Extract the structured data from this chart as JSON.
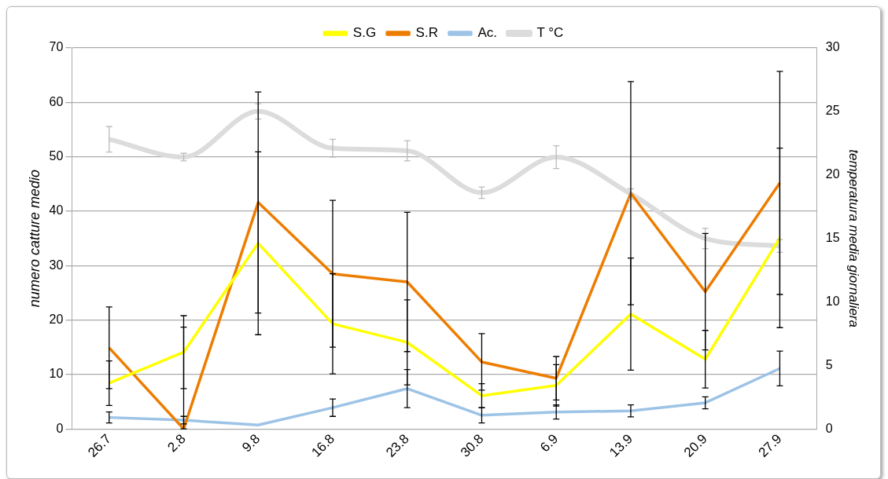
{
  "chart_data": {
    "type": "line",
    "ylabel": "numero catture medio",
    "y2label": "temperatura media giornaliera",
    "categories": [
      "26.7",
      "2.8",
      "9.8",
      "16.8",
      "23.8",
      "30.8",
      "6.9",
      "13.9",
      "20.9",
      "27.9"
    ],
    "series": [
      {
        "name": "S.G",
        "color": "#ffff00",
        "values": [
          8.4,
          14.1,
          34.1,
          19.3,
          15.9,
          6.1,
          8.0,
          21.1,
          12.8,
          35.1
        ],
        "errors": [
          4.1,
          6.7,
          16.8,
          9.2,
          7.8,
          2.2,
          3.8,
          10.3,
          5.3,
          16.5
        ]
      },
      {
        "name": "S.R",
        "color": "#ed7d00",
        "values": [
          14.9,
          0,
          41.6,
          28.5,
          27.0,
          12.3,
          9.3,
          43.3,
          25.2,
          45.2
        ],
        "errors": [
          7.5,
          [
            0,
            18.7
          ],
          20.3,
          13.5,
          12.8,
          5.2,
          4.0,
          20.5,
          10.7,
          20.5
        ]
      },
      {
        "name": "Ac.",
        "color": "#9dc3e6",
        "values": [
          2.1,
          1.6,
          0.7,
          3.9,
          7.4,
          2.5,
          3.1,
          3.3,
          4.8,
          11.1
        ],
        "errors": [
          1.0,
          0.7,
          null,
          1.6,
          3.5,
          1.4,
          1.3,
          1.1,
          1.1,
          3.2
        ]
      },
      {
        "name": "T °C",
        "color": "#dcdcdc",
        "axis": "y2",
        "values": [
          22.8,
          21.4,
          25.0,
          22.1,
          21.9,
          18.6,
          21.4,
          18.5,
          15.0,
          14.4
        ],
        "errors": [
          1.0,
          0.3,
          0.6,
          0.7,
          0.8,
          0.45,
          0.9,
          0.4,
          0.8,
          0.5
        ]
      }
    ],
    "ylim": [
      0,
      70
    ],
    "yticks": [
      0,
      10,
      20,
      30,
      40,
      50,
      60,
      70
    ],
    "y2lim": [
      0,
      30
    ],
    "y2ticks": [
      0,
      5,
      10,
      15,
      20,
      25,
      30
    ],
    "grid": "y",
    "legend": "top",
    "marker": "none",
    "line_style": "solid"
  }
}
